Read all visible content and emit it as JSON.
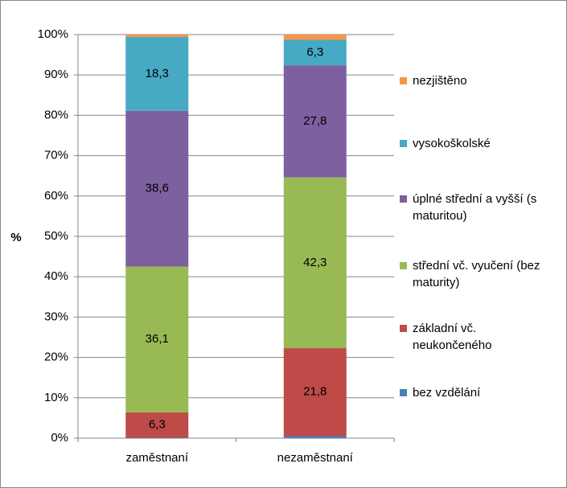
{
  "chart_data": {
    "type": "stacked-bar",
    "y_label": "%",
    "categories": [
      "zaměstnaní",
      "nezaměstnaní"
    ],
    "series": [
      {
        "name": "bez vzdělání",
        "color": "#4a7ebb",
        "values": [
          0.1,
          0.5
        ],
        "value_labels": [
          null,
          null
        ]
      },
      {
        "name": "základní vč. neukončeného",
        "color": "#be4b48",
        "values": [
          6.3,
          21.8
        ],
        "value_labels": [
          "6,3",
          "21,8"
        ]
      },
      {
        "name": "střední vč. vyučení (bez maturity)",
        "color": "#98b954",
        "values": [
          36.1,
          42.3
        ],
        "value_labels": [
          "36,1",
          "42,3"
        ]
      },
      {
        "name": "úplné střední a vyšší (s maturitou)",
        "color": "#7d60a0",
        "values": [
          38.6,
          27.8
        ],
        "value_labels": [
          "38,6",
          "27,8"
        ]
      },
      {
        "name": "vysokoškolské",
        "color": "#46aac5",
        "values": [
          18.3,
          6.3
        ],
        "value_labels": [
          "18,3",
          "6,3"
        ]
      },
      {
        "name": "nezjištěno",
        "color": "#f79646",
        "values": [
          0.6,
          1.3
        ],
        "value_labels": [
          null,
          null
        ]
      }
    ],
    "ylim": [
      0,
      100
    ],
    "yticks": [
      {
        "value": 0,
        "label": "0%"
      },
      {
        "value": 10,
        "label": "10%"
      },
      {
        "value": 20,
        "label": "20%"
      },
      {
        "value": 30,
        "label": "30%"
      },
      {
        "value": 40,
        "label": "40%"
      },
      {
        "value": 50,
        "label": "50%"
      },
      {
        "value": 60,
        "label": "60%"
      },
      {
        "value": 70,
        "label": "70%"
      },
      {
        "value": 80,
        "label": "80%"
      },
      {
        "value": 90,
        "label": "90%"
      },
      {
        "value": 100,
        "label": "100%"
      }
    ],
    "grid": true,
    "legend": "right"
  }
}
